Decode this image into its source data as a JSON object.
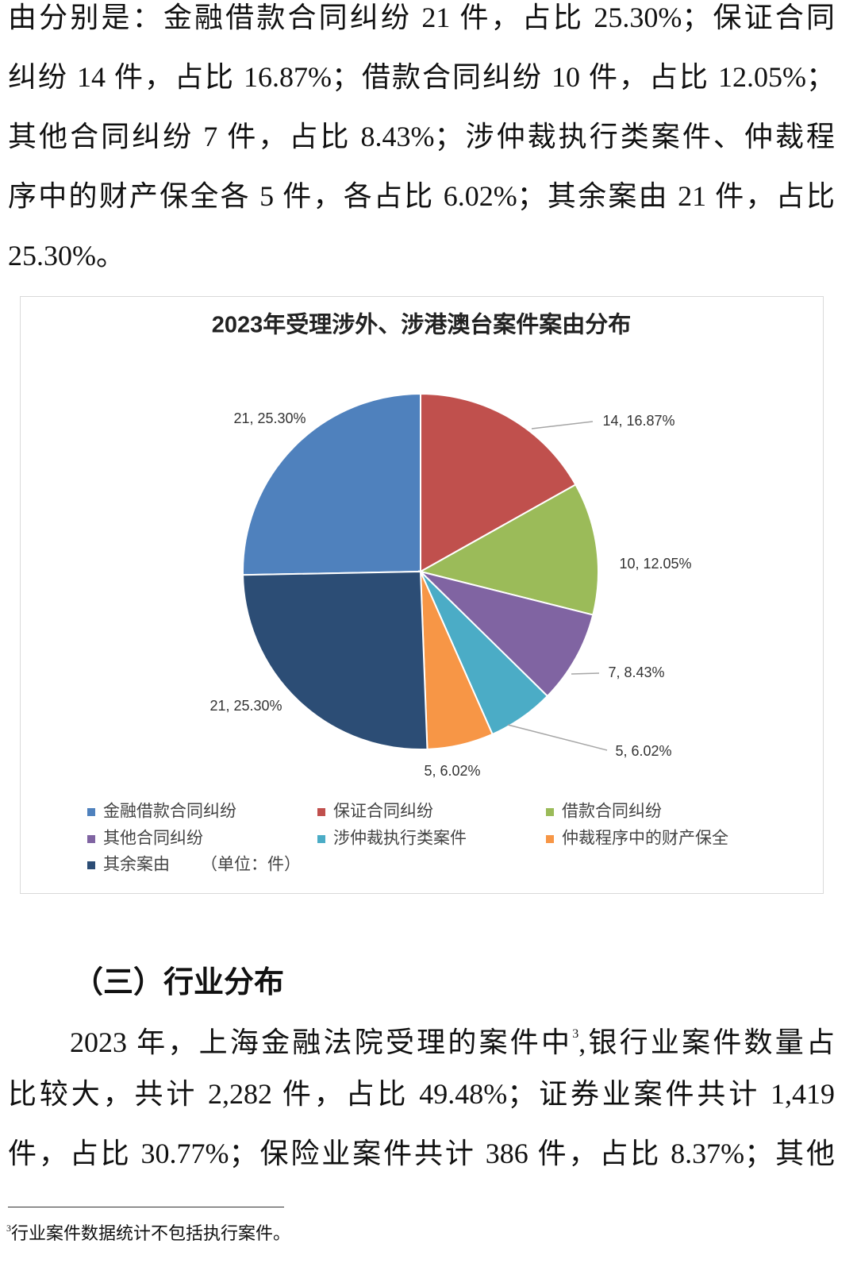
{
  "document": {
    "paragraph_1": [
      "由分别是：金融借款合同纠纷 21 件，占比 25.30%；保证合同",
      "纠纷 14 件，占比 16.87%；借款合同纠纷 10 件，占比 12.05%；",
      "其他合同纠纷 7 件，占比 8.43%；涉仲裁执行类案件、仲裁程",
      "序中的财产保全各 5 件，各占比 6.02%；其余案由 21 件，占比",
      "25.30%。"
    ],
    "section_heading": "（三）行业分布",
    "paragraph_2_first_line": {
      "before": "2023 年，上海金融法院受理的案件中",
      "footnote_ref": "3",
      "after": ",银行业案件数量占"
    },
    "paragraph_2_lines": [
      "比较大，共计 2,282 件，占比 49.48%；证券业案件共计 1,419",
      "件，占比 30.77%；保险业案件共计 386 件，占比 8.37%；其他"
    ],
    "footnote": {
      "marker": "3",
      "text": "行业案件数据统计不包括执行案件。"
    }
  },
  "chart_data": {
    "type": "pie",
    "title": "2023年受理涉外、涉港澳台案件案由分布",
    "categories": [
      "金融借款合同纠纷",
      "保证合同纠纷",
      "借款合同纠纷",
      "其他合同纠纷",
      "涉仲裁执行类案件",
      "仲裁程序中的财产保全",
      "其余案由"
    ],
    "values": [
      21,
      14,
      10,
      7,
      5,
      5,
      21
    ],
    "value_labels": [
      "21, 25.30%",
      "14, 16.87%",
      "10, 12.05%",
      "7, 8.43%",
      "5, 6.02%",
      "5, 6.02%",
      "21, 25.30%"
    ],
    "colors": [
      "#4f81bd",
      "#c0504d",
      "#9bbb59",
      "#8064a2",
      "#4bacc6",
      "#f79646",
      "#2c4d75"
    ],
    "unit_note": "（单位：件）"
  }
}
